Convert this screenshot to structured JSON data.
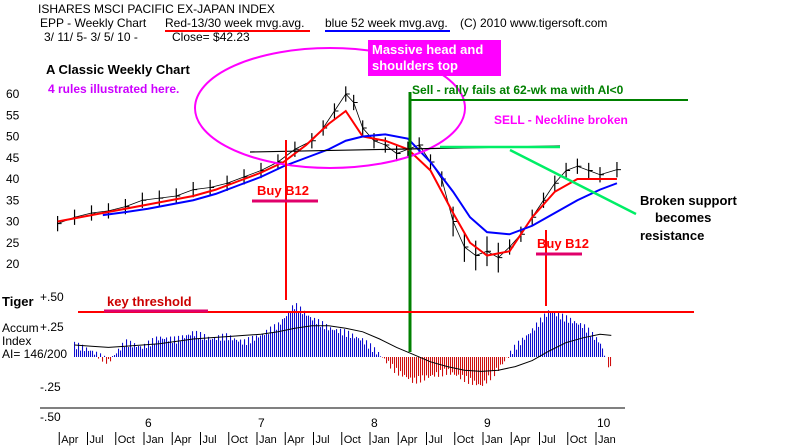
{
  "header": {
    "title": "ISHARES MSCI PACIFIC EX-JAPAN INDEX",
    "symbol_line": "EPP  - Weekly Chart",
    "red_legend": "Red-13/30 week mvg.avg.",
    "blue_legend": "blue 52 week mvg.avg.",
    "copyright": "(C) 2010 www.tigersoft.com",
    "date_range": "3/ 11/ 5- 3/ 5/ 10 -",
    "close": "Close= $42.23"
  },
  "annotations": {
    "classic": "A Classic Weekly Chart",
    "rules": "4 rules illustrated here.",
    "hs_top_1": "Massive head and",
    "hs_top_2": "shoulders top",
    "sell_rally": "Sell - rally fails at 62-wk ma with AI<0",
    "sell_neckline": "SELL - Neckline broken",
    "buy_b12_left": "Buy B12",
    "buy_b12_right": "Buy B12",
    "broken_support_1": "Broken support",
    "broken_support_2": "becomes",
    "broken_support_3": "resistance",
    "key_threshold": "key threshold"
  },
  "indicator": {
    "name": "Tiger",
    "label_1": "Accum",
    "label_2": "Index",
    "ai_value": "AI= 146/200"
  },
  "colors": {
    "price": "#000000",
    "ma_red": "#ff0000",
    "ma_blue": "#0000ff",
    "accum_pos": "#0000cc",
    "accum_neg": "#cc0000",
    "magenta": "#ff00ff",
    "green": "#008000",
    "cyan_green": "#00ee66",
    "pink": "#e0006a"
  },
  "chart_data": [
    {
      "type": "line",
      "title": "ISHARES MSCI PACIFIC EX-JAPAN INDEX",
      "ylim": [
        18,
        63
      ],
      "yticks": [
        20,
        25,
        30,
        35,
        40,
        45,
        50,
        55,
        60
      ],
      "x": [
        2005.2,
        2005.4,
        2005.6,
        2005.8,
        2006.0,
        2006.2,
        2006.4,
        2006.6,
        2006.8,
        2007.0,
        2007.2,
        2007.4,
        2007.6,
        2007.75,
        2007.9,
        2008.1,
        2008.3,
        2008.5,
        2008.7,
        2008.85,
        2009.0,
        2009.2,
        2009.4,
        2009.6,
        2009.8,
        2010.0,
        2010.15
      ],
      "series": [
        {
          "name": "Red-13/30 week mvg.avg.",
          "values": [
            30,
            31,
            32,
            33,
            34,
            35,
            36,
            37.5,
            39.5,
            41.5,
            44,
            48,
            53,
            56,
            50,
            49,
            47,
            42,
            32,
            25,
            22,
            23,
            31,
            37,
            40,
            40,
            40
          ]
        },
        {
          "name": "blue 52 week mvg.avg.",
          "values": [
            null,
            null,
            31.5,
            32.2,
            33,
            34,
            35,
            36.5,
            38.5,
            40.5,
            43,
            45,
            47,
            49,
            50,
            50.5,
            49.5,
            44,
            37,
            31,
            27.5,
            27,
            29,
            32,
            35,
            37.5,
            39
          ]
        }
      ],
      "price_x": [
        2005.2,
        2005.35,
        2005.5,
        2005.65,
        2005.8,
        2005.95,
        2006.1,
        2006.25,
        2006.4,
        2006.55,
        2006.7,
        2006.85,
        2007.0,
        2007.15,
        2007.3,
        2007.45,
        2007.55,
        2007.65,
        2007.75,
        2007.82,
        2007.9,
        2008.0,
        2008.1,
        2008.2,
        2008.3,
        2008.4,
        2008.5,
        2008.6,
        2008.7,
        2008.8,
        2008.9,
        2009.0,
        2009.1,
        2009.2,
        2009.3,
        2009.4,
        2009.5,
        2009.6,
        2009.7,
        2009.8,
        2009.9,
        2010.0,
        2010.15
      ],
      "price": [
        29.5,
        31,
        32,
        32.5,
        33.5,
        35,
        35.5,
        36,
        37.5,
        38,
        39,
        40.5,
        42,
        44,
        47,
        49,
        52,
        56,
        60,
        58,
        52,
        49,
        48,
        46,
        47,
        48,
        44,
        40,
        30,
        24,
        22,
        23,
        21.5,
        24,
        27,
        31,
        35,
        39,
        42,
        43,
        42,
        41,
        42.2
      ]
    },
    {
      "type": "bar",
      "title": "Tiger Accum Index",
      "ylim": [
        -0.5,
        0.5
      ],
      "yticks": [
        -0.5,
        -0.25,
        0.25,
        0.5
      ],
      "key_threshold": 0.35,
      "x": [
        2005.35,
        2005.5,
        2005.65,
        2005.8,
        2005.95,
        2006.1,
        2006.25,
        2006.4,
        2006.55,
        2006.7,
        2006.85,
        2007.0,
        2007.15,
        2007.3,
        2007.45,
        2007.6,
        2007.75,
        2007.9,
        2008.05,
        2008.2,
        2008.35,
        2008.5,
        2008.65,
        2008.8,
        2008.95,
        2009.1,
        2009.25,
        2009.4,
        2009.55,
        2009.7,
        2009.85,
        2010.0,
        2010.1
      ],
      "values": [
        0.1,
        0.05,
        -0.04,
        0.12,
        0.08,
        0.16,
        0.14,
        0.2,
        0.15,
        0.17,
        0.12,
        0.18,
        0.26,
        0.43,
        0.32,
        0.24,
        0.2,
        0.14,
        0.02,
        -0.12,
        -0.2,
        -0.16,
        -0.12,
        -0.18,
        -0.24,
        -0.1,
        0.08,
        0.22,
        0.38,
        0.32,
        0.26,
        0.12,
        -0.12
      ],
      "ma_values": [
        0.1,
        0.09,
        0.08,
        0.09,
        0.1,
        0.11,
        0.13,
        0.15,
        0.16,
        0.17,
        0.18,
        0.19,
        0.21,
        0.24,
        0.26,
        0.26,
        0.24,
        0.21,
        0.15,
        0.08,
        0.02,
        -0.04,
        -0.08,
        -0.11,
        -0.12,
        -0.11,
        -0.08,
        -0.03,
        0.05,
        0.12,
        0.16,
        0.19,
        0.18
      ]
    }
  ],
  "xaxis": {
    "years": [
      "6",
      "7",
      "8",
      "9",
      "10"
    ],
    "months": [
      "Apr",
      "Jul",
      "Oct",
      "Jan",
      "Apr",
      "Jul",
      "Oct",
      "Jan",
      "Apr",
      "Jul",
      "Oct",
      "Jan",
      "Apr",
      "Jul",
      "Oct",
      "Jan",
      "Apr",
      "Jul",
      "Oct",
      "Jan"
    ]
  }
}
